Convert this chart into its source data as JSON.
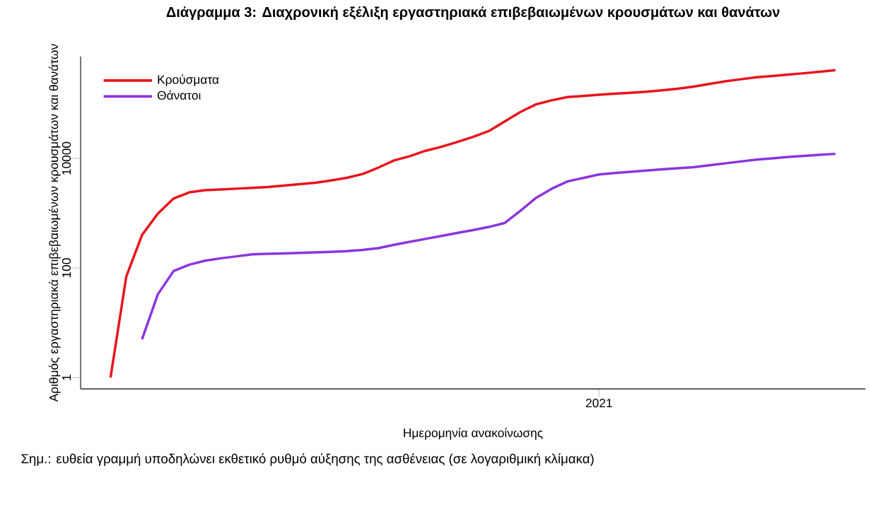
{
  "chart_data": {
    "type": "line",
    "title": "Διάγραμμα 3: Διαχρονική εξέλιξη εργαστηριακά επιβεβαιωμένων κρουσμάτων και θανάτων",
    "xlabel": "Ημερομηνία ανακοίνωσης",
    "ylabel": "Αριθμός εργαστηριακά επιβεβαιωμένων κρουσμάτων και θανάτων",
    "annotations": [
      "Σημ.: ευθεία γραμμή υποδηλώνει εκθετικό ρυθμό αύξησης της ασθένειας (σε λογαριθμική κλίμακα)"
    ],
    "log": "y",
    "grid": false,
    "legend": "top left",
    "marker": "none",
    "line_style": "solid",
    "categories": [
      null,
      null,
      null,
      null,
      null,
      null,
      null,
      null,
      null,
      null,
      null,
      null,
      null,
      null,
      null,
      null,
      null,
      null,
      null,
      null,
      null,
      null,
      null,
      null,
      null,
      null,
      null,
      null,
      null,
      null,
      null,
      "2021",
      null,
      null,
      null,
      null,
      null,
      null,
      null,
      null,
      null,
      null,
      null,
      null,
      null,
      null,
      null
    ],
    "ylim": [
      0.62,
      720000
    ],
    "yticks": [
      1,
      100,
      10000
    ],
    "series": [
      {
        "name": "Κρούσματα",
        "color": "#e8141c",
        "values": [
          1,
          70,
          400,
          980,
          1850,
          2400,
          2630,
          2710,
          2800,
          2900,
          3000,
          3200,
          3380,
          3590,
          3960,
          4430,
          5200,
          6800,
          9200,
          11000,
          13800,
          16300,
          19900,
          24700,
          31500,
          47000,
          70000,
          97000,
          115000,
          132000,
          138000,
          145000,
          152000,
          158000,
          165000,
          175000,
          187000,
          204000,
          228000,
          255000,
          278000,
          303000,
          320000,
          339000,
          358000,
          382000,
          407000
        ]
      },
      {
        "name": "Θάνατοι",
        "color": "#8b35e0",
        "values": [
          null,
          null,
          5,
          33,
          88,
          115,
          136,
          150,
          163,
          177,
          181,
          184,
          188,
          193,
          197,
          203,
          213,
          230,
          265,
          300,
          340,
          385,
          435,
          490,
          560,
          660,
          1100,
          1900,
          2800,
          3800,
          4400,
          5100,
          5400,
          5700,
          6000,
          6300,
          6600,
          6900,
          7500,
          8100,
          8800,
          9500,
          10000,
          10600,
          11100,
          11600,
          12100
        ]
      }
    ]
  }
}
